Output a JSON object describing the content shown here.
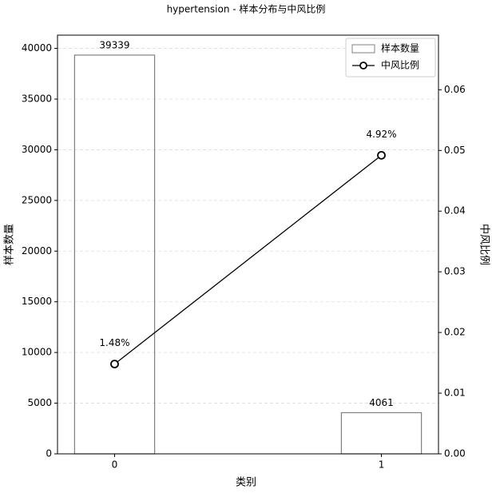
{
  "chart_data": {
    "type": "bar-line",
    "title": "hypertension - 样本分布与中风比例",
    "x_label": "类别",
    "y_label": "样本数量",
    "y2_label": "中风比例",
    "categories": [
      "0",
      "1"
    ],
    "series": [
      {
        "name": "样本数量",
        "type": "bar",
        "color": "#808080",
        "values": [
          39339,
          4061
        ]
      },
      {
        "name": "中风比例",
        "type": "line",
        "axis": "y2",
        "color": "#000000",
        "values": [
          0.0148,
          0.0492
        ],
        "value_labels": [
          "1.48%",
          "4.92%"
        ]
      }
    ],
    "ylim": [
      0,
      41306
    ],
    "yticks": [
      0,
      5000,
      10000,
      15000,
      20000,
      25000,
      30000,
      35000,
      40000
    ],
    "y2lim": [
      0,
      0.069
    ],
    "y2ticks": [
      {
        "value": 0,
        "label": "0.00"
      },
      0.01,
      0.02,
      0.03,
      0.04,
      0.05,
      0.06
    ],
    "grid": true,
    "legend": "upper right"
  }
}
